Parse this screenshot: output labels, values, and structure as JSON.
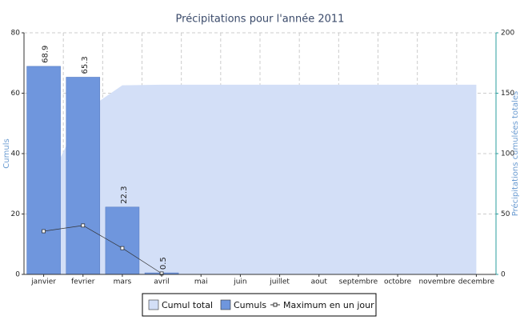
{
  "chart_data": {
    "type": "combo",
    "title": "Précipitations pour l'année 2011",
    "ylabel": "Cumuls",
    "y2label": "Précipitations cumulées totales",
    "categories": [
      "janvier",
      "fevrier",
      "mars",
      "avril",
      "mai",
      "juin",
      "juillet",
      "aout",
      "septembre",
      "octobre",
      "novembre",
      "decembre"
    ],
    "ylim": [
      0,
      80
    ],
    "yticks": [
      0,
      20,
      40,
      60,
      80
    ],
    "y2lim": [
      0,
      200
    ],
    "y2ticks": [
      0,
      50,
      100,
      150,
      200
    ],
    "grid": true,
    "legend": "bottom",
    "series": [
      {
        "name": "Cumul total",
        "type": "area",
        "axis": "y2",
        "color": "#d3dff7",
        "values": [
          68.9,
          134.2,
          156.5,
          157,
          157,
          157,
          157,
          157,
          157,
          157,
          157,
          157
        ]
      },
      {
        "name": "Cumuls",
        "type": "bar",
        "color": "#6f96dd",
        "values": [
          68.9,
          65.3,
          22.3,
          0.5,
          null,
          null,
          null,
          null,
          null,
          null,
          null,
          null
        ]
      },
      {
        "name": "Maximum en un jour",
        "type": "line",
        "color": "#333333",
        "values": [
          14.3,
          16.2,
          8.7,
          0.3,
          null,
          null,
          null,
          null,
          null,
          null,
          null,
          null
        ]
      }
    ]
  }
}
